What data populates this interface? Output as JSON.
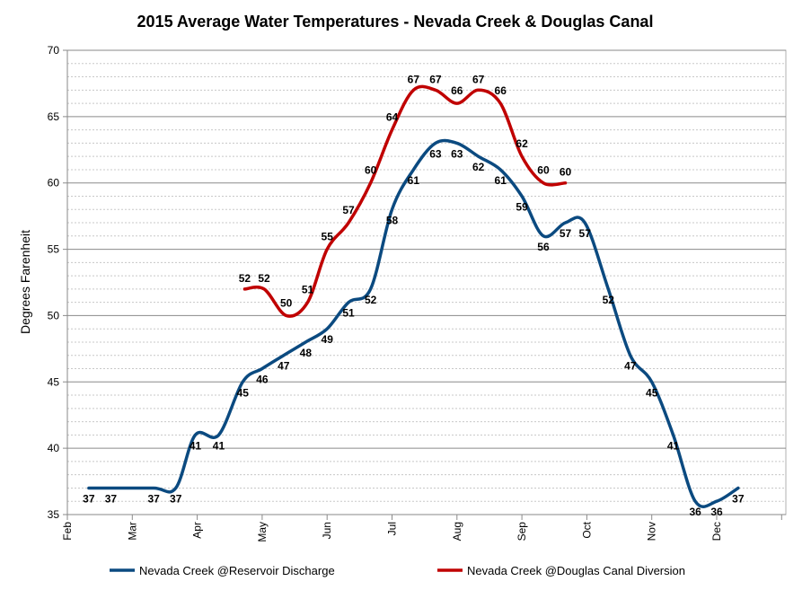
{
  "chart_data": {
    "type": "line",
    "title": "2015 Average Water Temperatures - Nevada Creek & Douglas Canal",
    "xlabel": "",
    "ylabel": "Degrees Farenheit",
    "ylim": [
      35,
      70
    ],
    "ytick_step": 5,
    "x_tick_labels": [
      "Feb",
      "Mar",
      "Apr",
      "May",
      "Jun",
      "Jul",
      "Aug",
      "Sep",
      "Oct",
      "Nov",
      "Dec"
    ],
    "x_range_months": [
      0,
      11
    ],
    "grid": "major and minor horizontal, minor dashed",
    "legend_position": "bottom",
    "series": [
      {
        "name": "Nevada Creek @Reservoir Discharge",
        "color": "#0b4a80",
        "points": [
          {
            "x": 0.33,
            "y": 37
          },
          {
            "x": 0.67,
            "y": 37
          },
          {
            "x": 1.33,
            "y": 37
          },
          {
            "x": 1.67,
            "y": 37
          },
          {
            "x": 1.97,
            "y": 41
          },
          {
            "x": 2.33,
            "y": 41
          },
          {
            "x": 2.7,
            "y": 45
          },
          {
            "x": 3.0,
            "y": 46
          },
          {
            "x": 3.33,
            "y": 47
          },
          {
            "x": 3.67,
            "y": 48
          },
          {
            "x": 4.0,
            "y": 49
          },
          {
            "x": 4.33,
            "y": 51
          },
          {
            "x": 4.67,
            "y": 52
          },
          {
            "x": 5.0,
            "y": 58
          },
          {
            "x": 5.33,
            "y": 61
          },
          {
            "x": 5.67,
            "y": 63
          },
          {
            "x": 6.0,
            "y": 63
          },
          {
            "x": 6.33,
            "y": 62
          },
          {
            "x": 6.67,
            "y": 61
          },
          {
            "x": 7.0,
            "y": 59
          },
          {
            "x": 7.33,
            "y": 56
          },
          {
            "x": 7.67,
            "y": 57
          },
          {
            "x": 7.97,
            "y": 57
          },
          {
            "x": 8.33,
            "y": 52
          },
          {
            "x": 8.67,
            "y": 47
          },
          {
            "x": 9.0,
            "y": 45
          },
          {
            "x": 9.33,
            "y": 41
          },
          {
            "x": 9.67,
            "y": 36
          },
          {
            "x": 10.0,
            "y": 36
          },
          {
            "x": 10.33,
            "y": 37
          }
        ]
      },
      {
        "name": "Nevada Creek @Douglas Canal Diversion",
        "color": "#c00000",
        "points": [
          {
            "x": 2.73,
            "y": 52
          },
          {
            "x": 3.03,
            "y": 52
          },
          {
            "x": 3.37,
            "y": 50
          },
          {
            "x": 3.7,
            "y": 51
          },
          {
            "x": 4.0,
            "y": 55
          },
          {
            "x": 4.33,
            "y": 57
          },
          {
            "x": 4.67,
            "y": 60
          },
          {
            "x": 5.0,
            "y": 64
          },
          {
            "x": 5.33,
            "y": 67
          },
          {
            "x": 5.67,
            "y": 67
          },
          {
            "x": 6.0,
            "y": 66
          },
          {
            "x": 6.33,
            "y": 67
          },
          {
            "x": 6.67,
            "y": 66
          },
          {
            "x": 7.0,
            "y": 62
          },
          {
            "x": 7.33,
            "y": 60
          },
          {
            "x": 7.67,
            "y": 60
          }
        ]
      }
    ]
  }
}
